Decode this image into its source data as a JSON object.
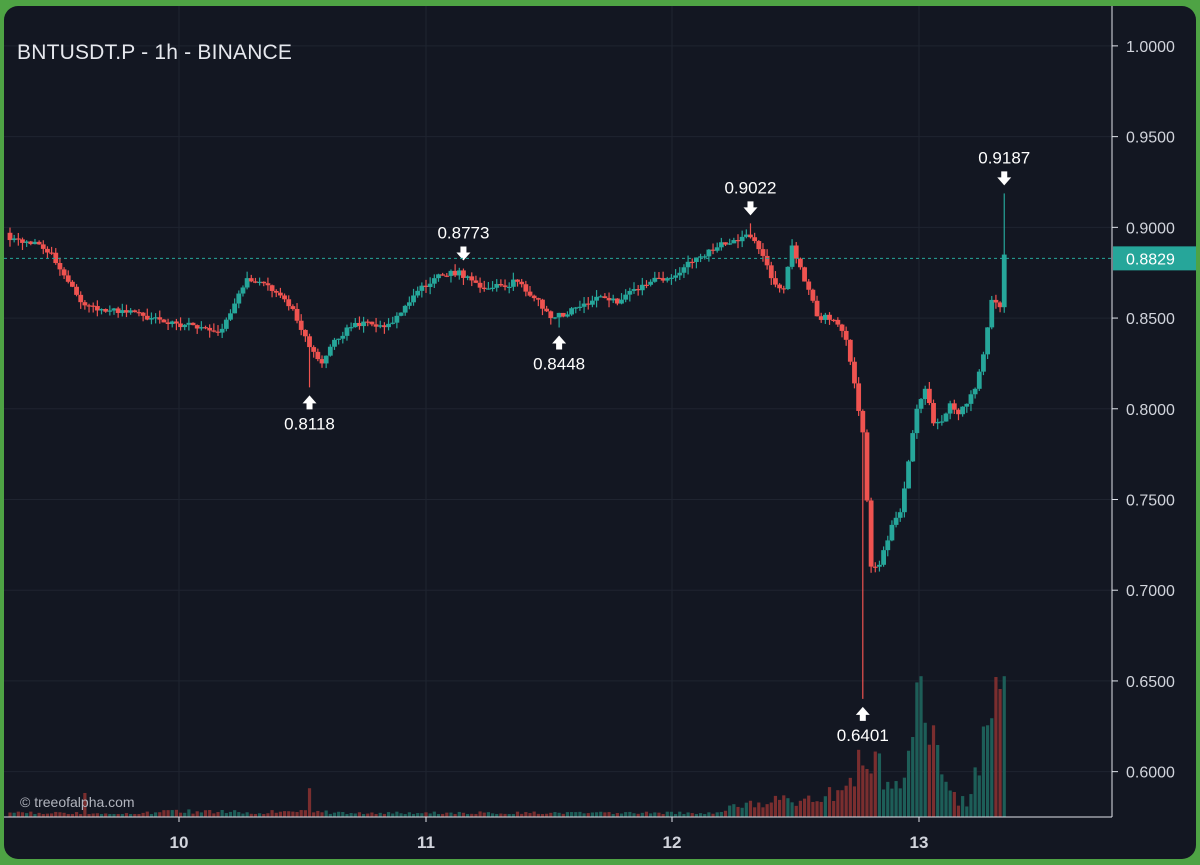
{
  "chart_data": {
    "type": "candlestick",
    "title": "BNTUSDT.P - 1h - BINANCE",
    "watermark": "© treeofalpha.com",
    "colors": {
      "up": "#26a69a",
      "down": "#ef5350",
      "volume_up": "#1d5e58",
      "volume_down": "#7a2e2f",
      "background": "#131722",
      "grid": "#1f2430",
      "axis_text": "#d1d4dc"
    },
    "ylim": [
      0.575,
      1.022
    ],
    "y_ticks": [
      "1.0000",
      "0.9500",
      "0.9000",
      "0.8500",
      "0.8000",
      "0.7500",
      "0.7000",
      "0.6500",
      "0.6000"
    ],
    "x_ticks": [
      "10",
      "11",
      "12",
      "13"
    ],
    "current_price": "0.8829",
    "annotations": [
      {
        "label": "0.8118",
        "candle": 72,
        "side": "below",
        "price": 0.8118
      },
      {
        "label": "0.8773",
        "candle": 109,
        "side": "above",
        "price": 0.8773
      },
      {
        "label": "0.8448",
        "candle": 132,
        "side": "below",
        "price": 0.8448
      },
      {
        "label": "0.9022",
        "candle": 178,
        "side": "above",
        "price": 0.9022
      },
      {
        "label": "0.6401",
        "candle": 205,
        "side": "below",
        "price": 0.6401
      },
      {
        "label": "0.9187",
        "candle": 239,
        "side": "above",
        "price": 0.9187
      }
    ],
    "anchors": [
      [
        0,
        0.893
      ],
      [
        6,
        0.892
      ],
      [
        10,
        0.886
      ],
      [
        14,
        0.87
      ],
      [
        18,
        0.857
      ],
      [
        22,
        0.855
      ],
      [
        28,
        0.853
      ],
      [
        34,
        0.85
      ],
      [
        40,
        0.847
      ],
      [
        46,
        0.845
      ],
      [
        50,
        0.842
      ],
      [
        54,
        0.858
      ],
      [
        57,
        0.872
      ],
      [
        60,
        0.87
      ],
      [
        64,
        0.864
      ],
      [
        68,
        0.855
      ],
      [
        72,
        0.834
      ],
      [
        75,
        0.825
      ],
      [
        78,
        0.838
      ],
      [
        82,
        0.845
      ],
      [
        86,
        0.848
      ],
      [
        90,
        0.845
      ],
      [
        94,
        0.853
      ],
      [
        98,
        0.865
      ],
      [
        102,
        0.872
      ],
      [
        106,
        0.876
      ],
      [
        110,
        0.873
      ],
      [
        114,
        0.866
      ],
      [
        118,
        0.868
      ],
      [
        122,
        0.87
      ],
      [
        126,
        0.861
      ],
      [
        130,
        0.85
      ],
      [
        134,
        0.852
      ],
      [
        138,
        0.858
      ],
      [
        142,
        0.862
      ],
      [
        146,
        0.858
      ],
      [
        150,
        0.866
      ],
      [
        154,
        0.87
      ],
      [
        158,
        0.872
      ],
      [
        162,
        0.878
      ],
      [
        166,
        0.884
      ],
      [
        170,
        0.889
      ],
      [
        174,
        0.893
      ],
      [
        177,
        0.896
      ],
      [
        180,
        0.888
      ],
      [
        183,
        0.872
      ],
      [
        186,
        0.866
      ],
      [
        188,
        0.89
      ],
      [
        190,
        0.878
      ],
      [
        194,
        0.851
      ],
      [
        198,
        0.849
      ],
      [
        201,
        0.838
      ],
      [
        203,
        0.814
      ],
      [
        205,
        0.787
      ],
      [
        207,
        0.713
      ],
      [
        209,
        0.714
      ],
      [
        212,
        0.736
      ],
      [
        214,
        0.743
      ],
      [
        216,
        0.771
      ],
      [
        218,
        0.8
      ],
      [
        220,
        0.811
      ],
      [
        222,
        0.792
      ],
      [
        224,
        0.793
      ],
      [
        226,
        0.803
      ],
      [
        228,
        0.797
      ],
      [
        232,
        0.811
      ],
      [
        234,
        0.83
      ],
      [
        236,
        0.86
      ],
      [
        238,
        0.856
      ],
      [
        239,
        0.885
      ]
    ],
    "volume_anchors": [
      [
        0,
        0.025
      ],
      [
        30,
        0.02
      ],
      [
        40,
        0.035
      ],
      [
        60,
        0.03
      ],
      [
        72,
        0.035
      ],
      [
        80,
        0.025
      ],
      [
        120,
        0.025
      ],
      [
        170,
        0.025
      ],
      [
        176,
        0.08
      ],
      [
        182,
        0.07
      ],
      [
        186,
        0.12
      ],
      [
        190,
        0.1
      ],
      [
        196,
        0.13
      ],
      [
        200,
        0.18
      ],
      [
        204,
        0.25
      ],
      [
        206,
        0.45
      ],
      [
        208,
        0.38
      ],
      [
        210,
        0.2
      ],
      [
        214,
        0.18
      ],
      [
        217,
        0.55
      ],
      [
        219,
        0.88
      ],
      [
        221,
        0.4
      ],
      [
        223,
        0.5
      ],
      [
        226,
        0.12
      ],
      [
        230,
        0.1
      ],
      [
        234,
        0.45
      ],
      [
        236,
        0.65
      ],
      [
        239,
        0.88
      ]
    ],
    "volume_spikes": [
      [
        18,
        0.15
      ],
      [
        72,
        0.18
      ],
      [
        204,
        0.42
      ],
      [
        206,
        0.3
      ],
      [
        217,
        0.5
      ],
      [
        219,
        0.88
      ],
      [
        223,
        0.45
      ],
      [
        238,
        0.8
      ],
      [
        239,
        0.88
      ]
    ]
  }
}
